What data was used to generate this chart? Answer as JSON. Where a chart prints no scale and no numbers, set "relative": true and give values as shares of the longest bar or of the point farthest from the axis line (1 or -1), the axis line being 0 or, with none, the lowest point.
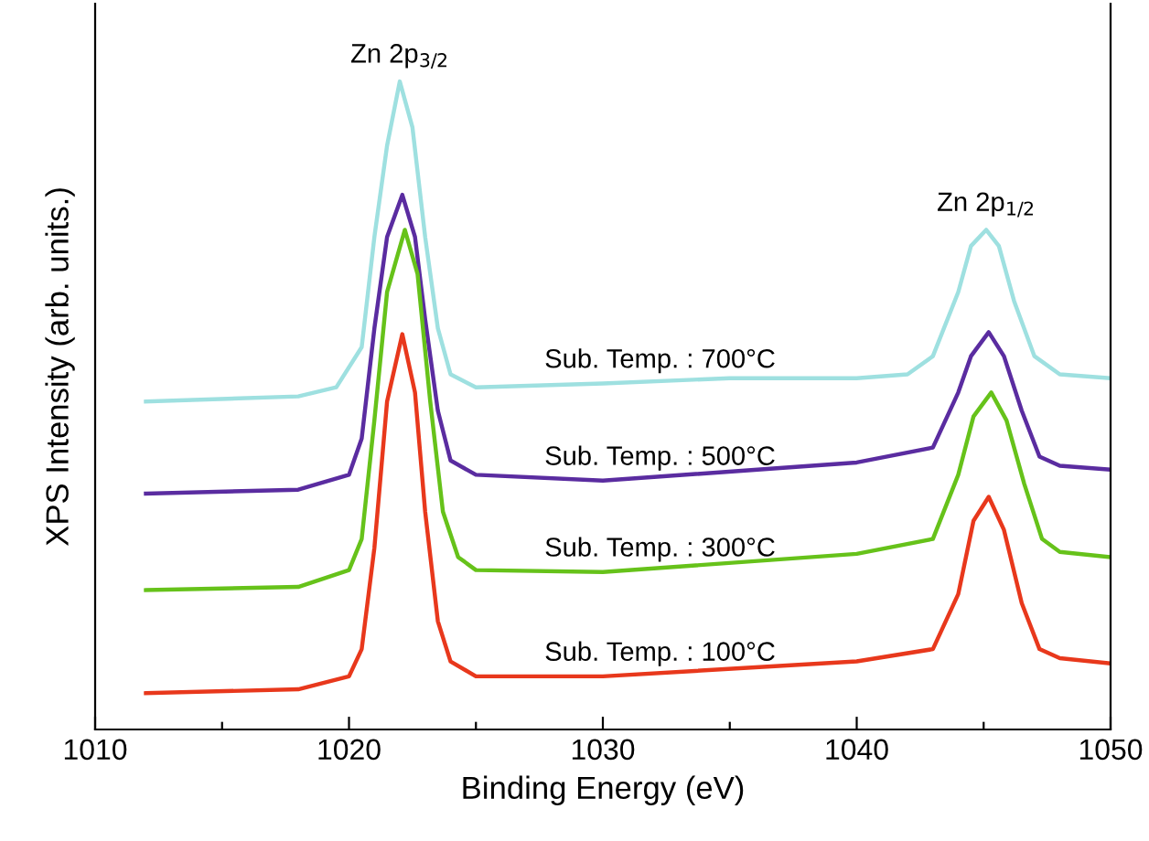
{
  "chart_data": {
    "type": "line",
    "relative": true,
    "xlabel": "Binding Energy (eV)",
    "ylabel": "XPS Intensity (arb. units.)",
    "xlim": [
      1010,
      1050
    ],
    "xticks": [
      1010,
      {
        "value": 1015,
        "label": null
      },
      1020,
      {
        "value": 1025,
        "label": null
      },
      1030,
      {
        "value": 1035,
        "label": null
      },
      1040,
      {
        "value": 1045,
        "label": null
      },
      1050
    ],
    "grid": false,
    "legend": false,
    "marker": "none",
    "line_style": "solid",
    "annotations": [
      {
        "text": "Zn 2p$_{3/2}$",
        "x": 1022,
        "y": 1.0
      },
      {
        "text": "Zn 2p$_{1/2}$",
        "x": 1045.1,
        "y": 0.771
      }
    ],
    "series": [
      {
        "name": "Sub. Temp. : 700°C",
        "color": "#9ee0e0",
        "x": [
          1012,
          1018,
          1019.5,
          1020.5,
          1021,
          1021.5,
          1022,
          1022.5,
          1023,
          1023.5,
          1024,
          1025,
          1030,
          1035,
          1040,
          1042,
          1043,
          1044,
          1044.5,
          1045.1,
          1045.6,
          1046.2,
          1047,
          1048,
          1050
        ],
        "values": [
          0.506,
          0.514,
          0.528,
          0.59,
          0.76,
          0.901,
          1.0,
          0.929,
          0.76,
          0.619,
          0.548,
          0.528,
          0.534,
          0.542,
          0.542,
          0.548,
          0.576,
          0.675,
          0.746,
          0.771,
          0.746,
          0.661,
          0.576,
          0.548,
          0.542
        ]
      },
      {
        "name": "Sub. Temp. : 500°C",
        "color": "#5a2ca0",
        "x": [
          1012,
          1018,
          1020,
          1020.5,
          1021,
          1021.5,
          1022.1,
          1022.6,
          1023,
          1023.5,
          1024,
          1025,
          1030,
          1040,
          1043,
          1044,
          1044.5,
          1045.2,
          1045.8,
          1046.5,
          1047.2,
          1048,
          1050
        ],
        "values": [
          0.364,
          0.37,
          0.393,
          0.449,
          0.619,
          0.76,
          0.825,
          0.76,
          0.633,
          0.492,
          0.415,
          0.393,
          0.384,
          0.412,
          0.435,
          0.52,
          0.576,
          0.613,
          0.576,
          0.492,
          0.421,
          0.407,
          0.401
        ]
      },
      {
        "name": "Sub. Temp. : 300°C",
        "color": "#66c21a",
        "x": [
          1012,
          1018,
          1020,
          1020.5,
          1021,
          1021.5,
          1022.2,
          1022.7,
          1023.2,
          1023.7,
          1024.3,
          1025,
          1030,
          1040,
          1043,
          1044,
          1044.6,
          1045.3,
          1045.9,
          1046.6,
          1047.3,
          1048,
          1050
        ],
        "values": [
          0.215,
          0.22,
          0.246,
          0.294,
          0.477,
          0.675,
          0.771,
          0.703,
          0.506,
          0.336,
          0.266,
          0.246,
          0.243,
          0.271,
          0.294,
          0.393,
          0.483,
          0.52,
          0.477,
          0.379,
          0.294,
          0.274,
          0.266
        ]
      },
      {
        "name": "Sub. Temp. : 100°C",
        "color": "#e8381c",
        "x": [
          1012,
          1018,
          1020,
          1020.5,
          1021,
          1021.5,
          1022.1,
          1022.6,
          1023,
          1023.5,
          1024,
          1025,
          1030,
          1040,
          1043,
          1044,
          1044.6,
          1045.2,
          1045.8,
          1046.5,
          1047.2,
          1048,
          1050
        ],
        "values": [
          0.056,
          0.062,
          0.082,
          0.124,
          0.28,
          0.506,
          0.61,
          0.52,
          0.336,
          0.167,
          0.105,
          0.082,
          0.082,
          0.105,
          0.124,
          0.209,
          0.322,
          0.359,
          0.308,
          0.195,
          0.124,
          0.11,
          0.102
        ]
      }
    ]
  }
}
